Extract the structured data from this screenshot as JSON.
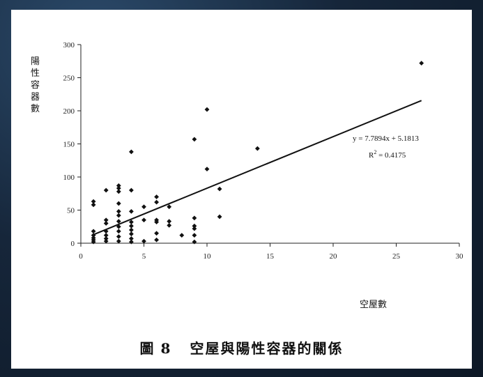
{
  "caption": {
    "figure_label": "圖",
    "figure_number": "8",
    "text": "空屋與陽性容器的關係"
  },
  "chart_data": {
    "type": "scatter",
    "ylabel": "陽性容器數",
    "xlabel": "空屋數",
    "xlim": [
      0,
      30
    ],
    "ylim": [
      0,
      300
    ],
    "x_ticks": [
      "0",
      "5",
      "10",
      "15",
      "20",
      "25",
      "30"
    ],
    "y_ticks": [
      "0",
      "50",
      "100",
      "150",
      "200",
      "250",
      "300"
    ],
    "grid": false,
    "points": [
      {
        "x": 1,
        "y": 2
      },
      {
        "x": 1,
        "y": 5
      },
      {
        "x": 1,
        "y": 8
      },
      {
        "x": 1,
        "y": 12
      },
      {
        "x": 1,
        "y": 18
      },
      {
        "x": 1,
        "y": 58
      },
      {
        "x": 1,
        "y": 63
      },
      {
        "x": 2,
        "y": 3
      },
      {
        "x": 2,
        "y": 7
      },
      {
        "x": 2,
        "y": 12
      },
      {
        "x": 2,
        "y": 18
      },
      {
        "x": 2,
        "y": 30
      },
      {
        "x": 2,
        "y": 35
      },
      {
        "x": 2,
        "y": 80
      },
      {
        "x": 3,
        "y": 3
      },
      {
        "x": 3,
        "y": 10
      },
      {
        "x": 3,
        "y": 18
      },
      {
        "x": 3,
        "y": 25
      },
      {
        "x": 3,
        "y": 33
      },
      {
        "x": 3,
        "y": 42
      },
      {
        "x": 3,
        "y": 48
      },
      {
        "x": 3,
        "y": 60
      },
      {
        "x": 3,
        "y": 78
      },
      {
        "x": 3,
        "y": 83
      },
      {
        "x": 3,
        "y": 87
      },
      {
        "x": 4,
        "y": 2
      },
      {
        "x": 4,
        "y": 7
      },
      {
        "x": 4,
        "y": 14
      },
      {
        "x": 4,
        "y": 20
      },
      {
        "x": 4,
        "y": 26
      },
      {
        "x": 4,
        "y": 32
      },
      {
        "x": 4,
        "y": 48
      },
      {
        "x": 4,
        "y": 80
      },
      {
        "x": 4,
        "y": 138
      },
      {
        "x": 5,
        "y": 3
      },
      {
        "x": 5,
        "y": 35
      },
      {
        "x": 5,
        "y": 55
      },
      {
        "x": 6,
        "y": 5
      },
      {
        "x": 6,
        "y": 15
      },
      {
        "x": 6,
        "y": 32
      },
      {
        "x": 6,
        "y": 35
      },
      {
        "x": 6,
        "y": 62
      },
      {
        "x": 6,
        "y": 70
      },
      {
        "x": 7,
        "y": 27
      },
      {
        "x": 7,
        "y": 33
      },
      {
        "x": 7,
        "y": 55
      },
      {
        "x": 8,
        "y": 12
      },
      {
        "x": 9,
        "y": 2
      },
      {
        "x": 9,
        "y": 12
      },
      {
        "x": 9,
        "y": 22
      },
      {
        "x": 9,
        "y": 26
      },
      {
        "x": 9,
        "y": 38
      },
      {
        "x": 9,
        "y": 157
      },
      {
        "x": 10,
        "y": 112
      },
      {
        "x": 10,
        "y": 202
      },
      {
        "x": 11,
        "y": 40
      },
      {
        "x": 11,
        "y": 82
      },
      {
        "x": 14,
        "y": 143
      },
      {
        "x": 27,
        "y": 272
      }
    ],
    "trendline": {
      "slope": 7.7894,
      "intercept": 5.1813,
      "x_range": [
        1,
        27
      ],
      "equation_label": "y = 7.7894x + 5.1813",
      "r2_prefix": "R",
      "r2_sup": "2",
      "r2_value": " = 0.4175"
    }
  }
}
